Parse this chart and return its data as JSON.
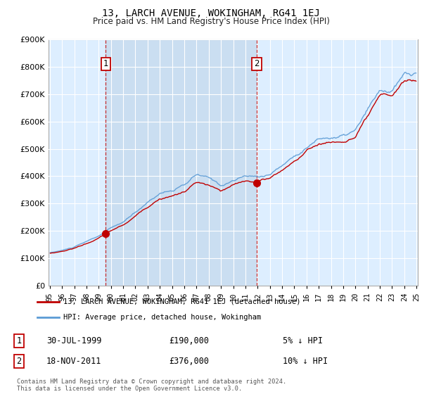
{
  "title": "13, LARCH AVENUE, WOKINGHAM, RG41 1EJ",
  "subtitle": "Price paid vs. HM Land Registry's House Price Index (HPI)",
  "legend_line1": "13, LARCH AVENUE, WOKINGHAM, RG41 1EJ (detached house)",
  "legend_line2": "HPI: Average price, detached house, Wokingham",
  "footnote": "Contains HM Land Registry data © Crown copyright and database right 2024.\nThis data is licensed under the Open Government Licence v3.0.",
  "annotation1_date": "30-JUL-1999",
  "annotation1_price": "£190,000",
  "annotation1_pct": "5% ↓ HPI",
  "annotation2_date": "18-NOV-2011",
  "annotation2_price": "£376,000",
  "annotation2_pct": "10% ↓ HPI",
  "hpi_color": "#5b9bd5",
  "price_color": "#c00000",
  "grid_color": "#d0d0d0",
  "chart_bg": "#ddeeff",
  "shade_color": "#c8ddf0",
  "ylim_min": 0,
  "ylim_max": 900000,
  "t1_year": 1999.58,
  "t1_price": 190000,
  "t2_year": 2011.92,
  "t2_price": 376000
}
